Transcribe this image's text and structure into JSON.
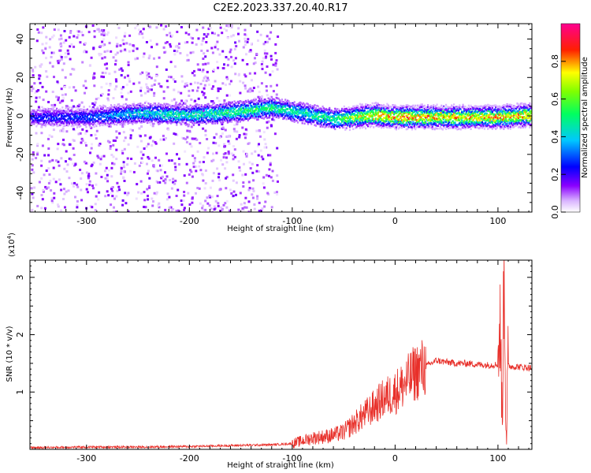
{
  "chart_data": [
    {
      "type": "heatmap",
      "title": "C2E2.2023.337.20.40.R17",
      "xlabel": "Height of straight line (km)",
      "ylabel": "Frequency (Hz)",
      "xlim": [
        -355,
        133
      ],
      "ylim": [
        -50,
        48
      ],
      "xticks": [
        -300,
        -200,
        -100,
        0,
        100
      ],
      "yticks": [
        -40,
        -20,
        0,
        20,
        40
      ],
      "colorbar": {
        "label": "Normalized spectral amplitude",
        "range": [
          0,
          1
        ],
        "ticks": [
          0.0,
          0.2,
          0.4,
          0.6,
          0.8
        ],
        "colors": [
          "#ffffff",
          "#8a00ff",
          "#0000ff",
          "#00ffff",
          "#00ff00",
          "#ffff00",
          "#ff0000",
          "#ff00aa"
        ]
      },
      "ridge": {
        "description_points_x": [
          -355,
          -300,
          -250,
          -200,
          -150,
          -120,
          -100,
          -80,
          -60,
          -40,
          -20,
          0,
          20,
          50,
          80,
          100,
          133
        ],
        "center_freq": [
          0,
          0,
          2,
          1,
          3,
          5,
          3,
          1,
          -1,
          0,
          1,
          0,
          0,
          0,
          0,
          0,
          1
        ],
        "peak_amplitude": [
          0.25,
          0.3,
          0.45,
          0.5,
          0.55,
          0.55,
          0.5,
          0.5,
          0.55,
          0.7,
          0.8,
          0.85,
          0.85,
          0.8,
          0.8,
          0.85,
          0.85
        ]
      }
    },
    {
      "type": "line",
      "xlabel": "Height of straight line (km)",
      "ylabel": "SNR (10 * v/v)",
      "y_multiplier": "(x10^4)",
      "y_multiplier_base": "(x10",
      "y_multiplier_exp": "4",
      "y_multiplier_close": ")",
      "xlim": [
        -355,
        133
      ],
      "ylim": [
        0,
        3.3
      ],
      "xticks": [
        -300,
        -200,
        -100,
        0,
        100
      ],
      "yticks": [
        1,
        2,
        3
      ],
      "series": [
        {
          "color": "#e8302a",
          "x": [
            -355,
            -300,
            -250,
            -200,
            -150,
            -120,
            -100,
            -90,
            -80,
            -70,
            -60,
            -50,
            -40,
            -30,
            -20,
            -10,
            0,
            10,
            20,
            30,
            40,
            50,
            60,
            70,
            80,
            90,
            100,
            102,
            104,
            106,
            108,
            110,
            120,
            133
          ],
          "y": [
            0.03,
            0.04,
            0.04,
            0.05,
            0.07,
            0.08,
            0.1,
            0.15,
            0.2,
            0.22,
            0.25,
            0.3,
            0.45,
            0.6,
            0.75,
            0.9,
            1.0,
            1.15,
            1.35,
            1.45,
            1.55,
            1.52,
            1.5,
            1.5,
            1.48,
            1.47,
            1.48,
            2.2,
            0.6,
            3.2,
            0.4,
            1.45,
            1.44,
            1.42
          ]
        }
      ]
    }
  ]
}
